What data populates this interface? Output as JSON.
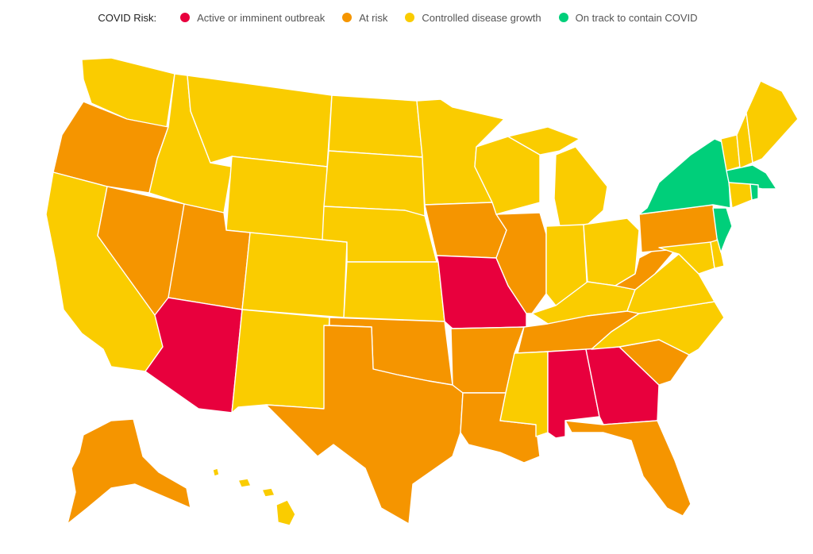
{
  "legend": {
    "title": "COVID Risk:",
    "items": [
      {
        "key": "red",
        "label": "Active or imminent outbreak",
        "color": "#E8003D"
      },
      {
        "key": "orange",
        "label": "At risk",
        "color": "#F59500"
      },
      {
        "key": "yellow",
        "label": "Controlled disease growth",
        "color": "#FACC00"
      },
      {
        "key": "green",
        "label": "On track to contain COVID",
        "color": "#00CF7A"
      }
    ]
  },
  "states": {
    "WA": "yellow",
    "OR": "orange",
    "CA": "yellow",
    "NV": "orange",
    "ID": "yellow",
    "MT": "yellow",
    "WY": "yellow",
    "UT": "orange",
    "AZ": "red",
    "CO": "yellow",
    "NM": "yellow",
    "ND": "yellow",
    "SD": "yellow",
    "NE": "yellow",
    "KS": "yellow",
    "OK": "orange",
    "TX": "orange",
    "MN": "yellow",
    "IA": "orange",
    "MO": "red",
    "AR": "orange",
    "LA": "orange",
    "WI": "yellow",
    "IL": "orange",
    "MI": "yellow",
    "IN": "yellow",
    "OH": "yellow",
    "KY": "yellow",
    "TN": "orange",
    "MS": "yellow",
    "AL": "red",
    "GA": "red",
    "FL": "orange",
    "SC": "orange",
    "NC": "yellow",
    "VA": "yellow",
    "WV": "orange",
    "PA": "orange",
    "NY": "green",
    "NJ": "green",
    "DE": "yellow",
    "MD": "yellow",
    "CT": "yellow",
    "RI": "green",
    "MA": "green",
    "VT": "yellow",
    "NH": "yellow",
    "ME": "yellow",
    "AK": "orange",
    "HI": "yellow"
  }
}
